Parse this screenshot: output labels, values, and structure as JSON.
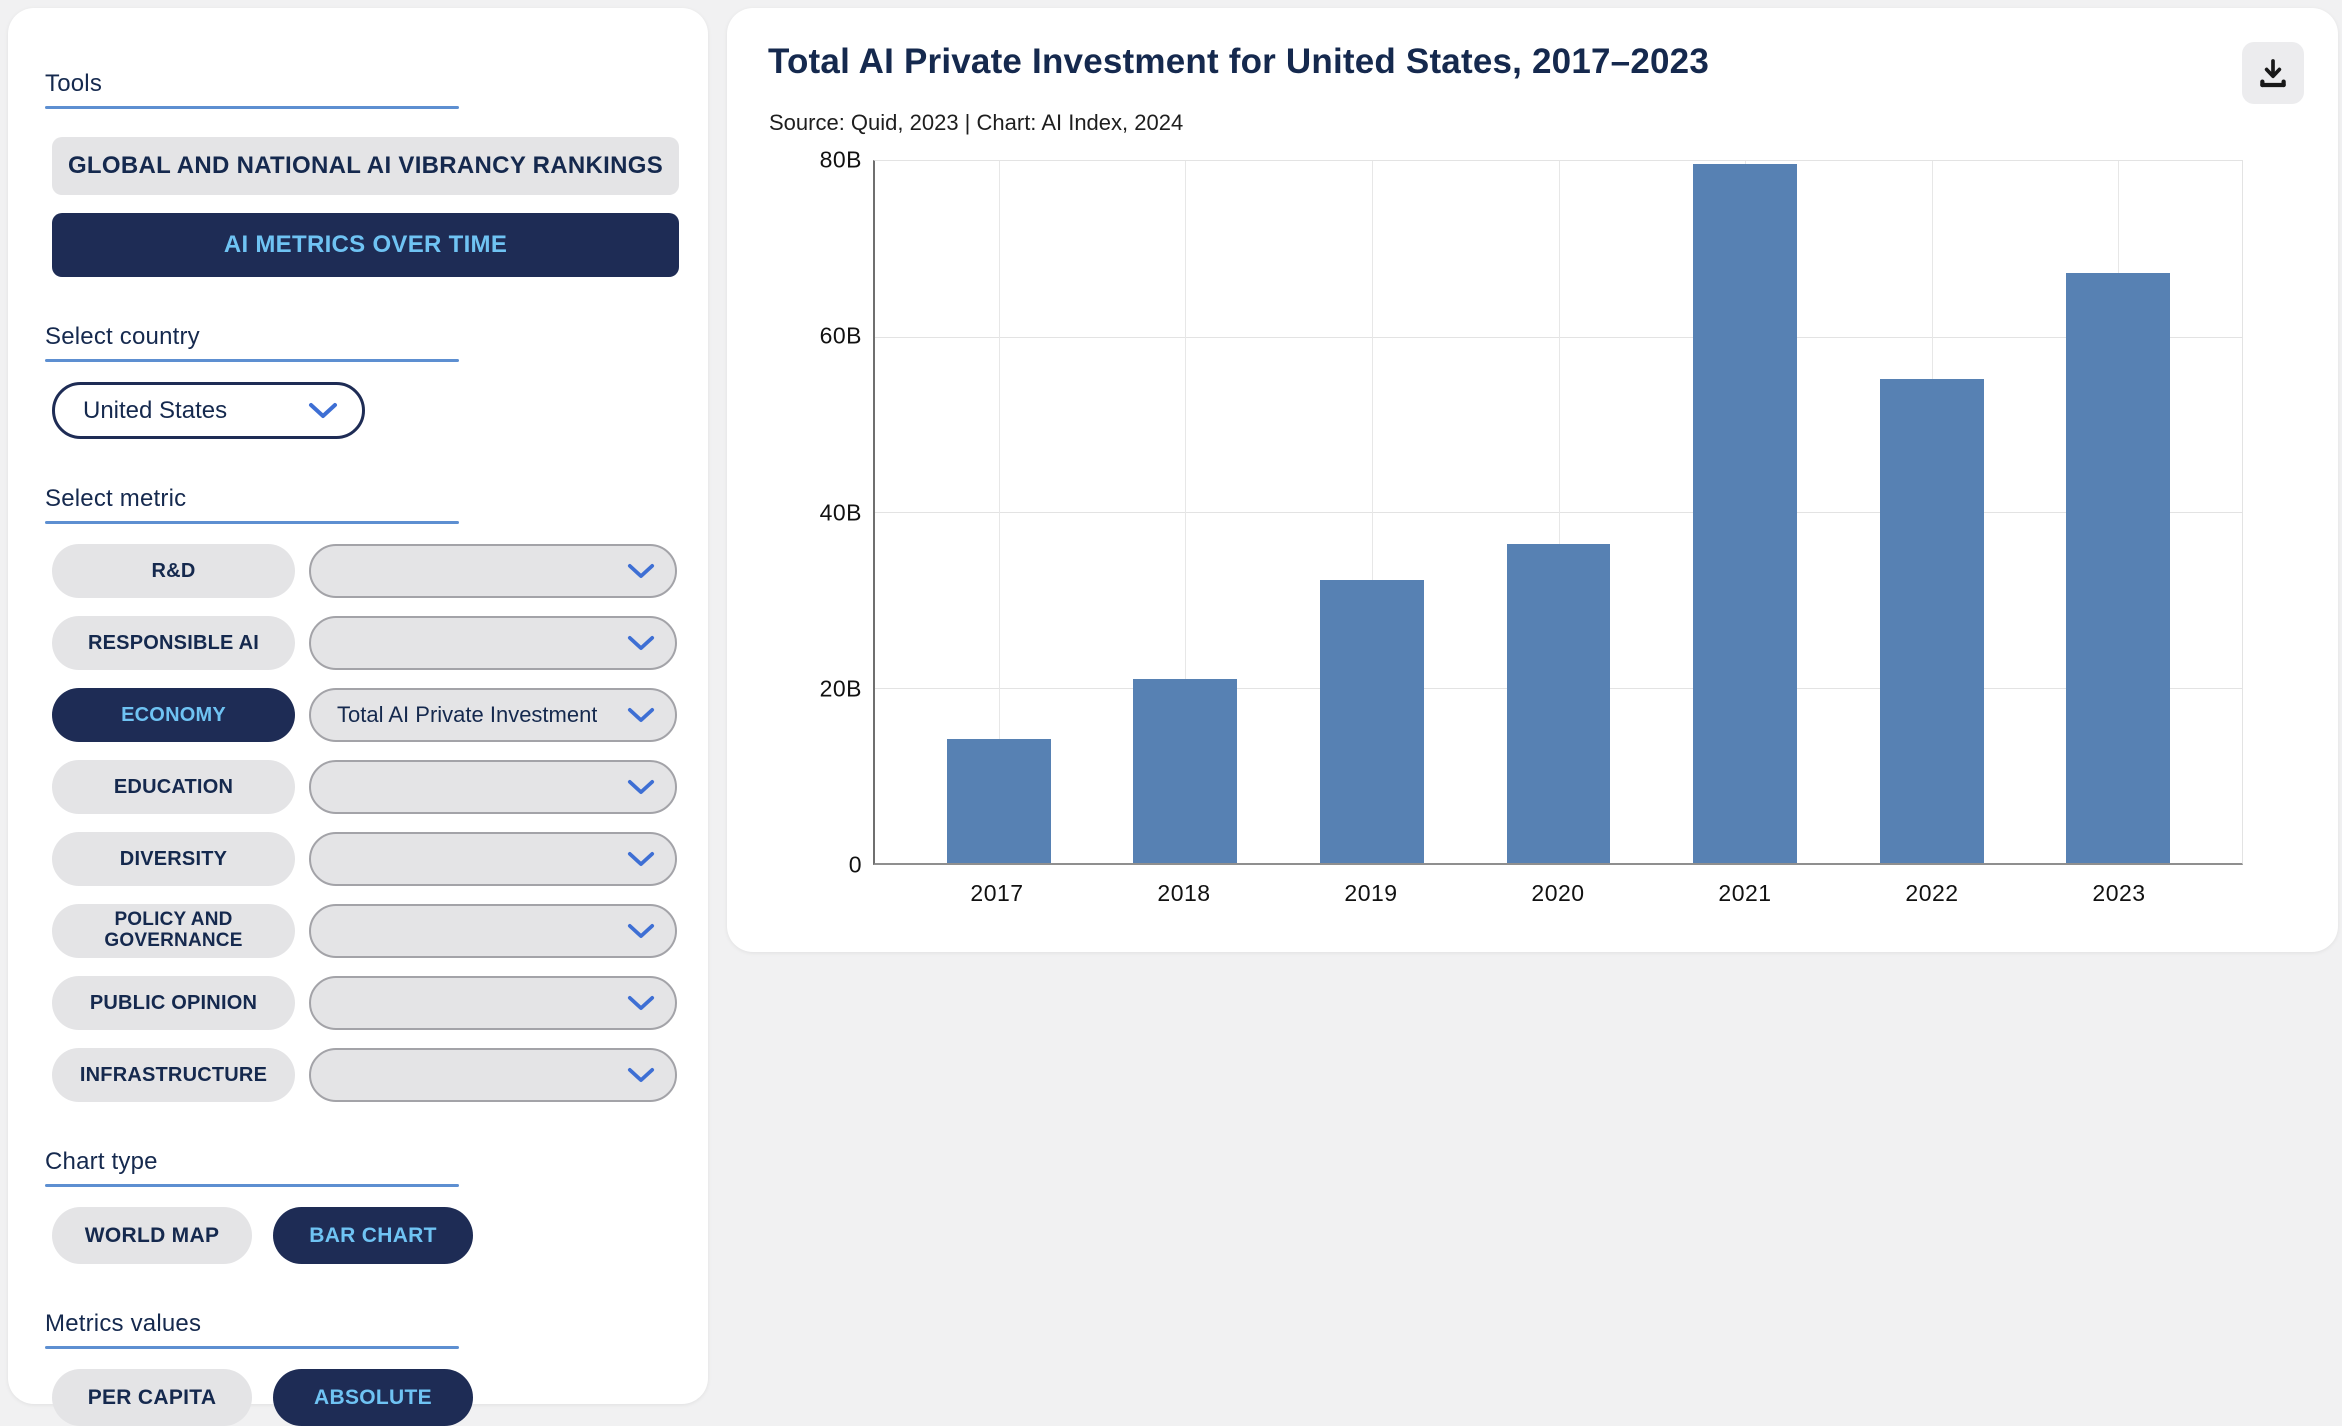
{
  "colors": {
    "page_bg": "#f1f1f2",
    "navy": "#1e2c55",
    "light_blue": "#6fc3f3",
    "title_navy": "#15294e",
    "underline_blue": "#5d8fd1",
    "chevron_blue": "#3e6fd4",
    "pill_gray": "#e4e4e6",
    "bar_blue": "#5781b3"
  },
  "sidebar": {
    "tools_label": "Tools",
    "rankings_button": "GLOBAL AND NATIONAL AI VIBRANCY RANKINGS",
    "metrics_over_time_button": "AI METRICS OVER TIME",
    "select_country_label": "Select country",
    "country_value": "United States",
    "select_metric_label": "Select metric",
    "metrics": [
      {
        "label": "R&D",
        "value": "",
        "selected": false
      },
      {
        "label": "RESPONSIBLE AI",
        "value": "",
        "selected": false
      },
      {
        "label": "ECONOMY",
        "value": "Total AI Private Investment",
        "selected": true
      },
      {
        "label": "EDUCATION",
        "value": "",
        "selected": false
      },
      {
        "label": "DIVERSITY",
        "value": "",
        "selected": false
      },
      {
        "label": "POLICY AND GOVERNANCE",
        "value": "",
        "selected": false
      },
      {
        "label": "PUBLIC OPINION",
        "value": "",
        "selected": false
      },
      {
        "label": "INFRASTRUCTURE",
        "value": "",
        "selected": false
      }
    ],
    "chart_type_label": "Chart type",
    "chart_type_options": [
      {
        "label": "WORLD MAP",
        "selected": false
      },
      {
        "label": "BAR CHART",
        "selected": true
      }
    ],
    "metrics_values_label": "Metrics values",
    "metrics_values_options": [
      {
        "label": "PER CAPITA",
        "selected": false
      },
      {
        "label": "ABSOLUTE",
        "selected": true
      }
    ]
  },
  "chart_panel": {
    "title": "Total AI Private Investment for United States, 2017–2023",
    "source": "Source: Quid, 2023 | Chart: AI Index, 2024"
  },
  "chart_data": {
    "type": "bar",
    "title": "Total AI Private Investment for United States, 2017–2023",
    "source_note": "Source: Quid, 2023 | Chart: AI Index, 2024",
    "categories": [
      "2017",
      "2018",
      "2019",
      "2020",
      "2021",
      "2022",
      "2023"
    ],
    "values_billions": [
      14.1,
      21.0,
      32.2,
      36.3,
      79.7,
      55.2,
      67.2
    ],
    "unit": "USD billions",
    "xlabel": "",
    "ylabel": "",
    "ylim": [
      0,
      80
    ],
    "y_ticks": [
      {
        "value": 0,
        "label": "0"
      },
      {
        "value": 20,
        "label": "20B"
      },
      {
        "value": 40,
        "label": "40B"
      },
      {
        "value": 60,
        "label": "60B"
      },
      {
        "value": 80,
        "label": "80B"
      }
    ],
    "grid": true,
    "legend": "none",
    "bar_color": "#5781b3"
  }
}
